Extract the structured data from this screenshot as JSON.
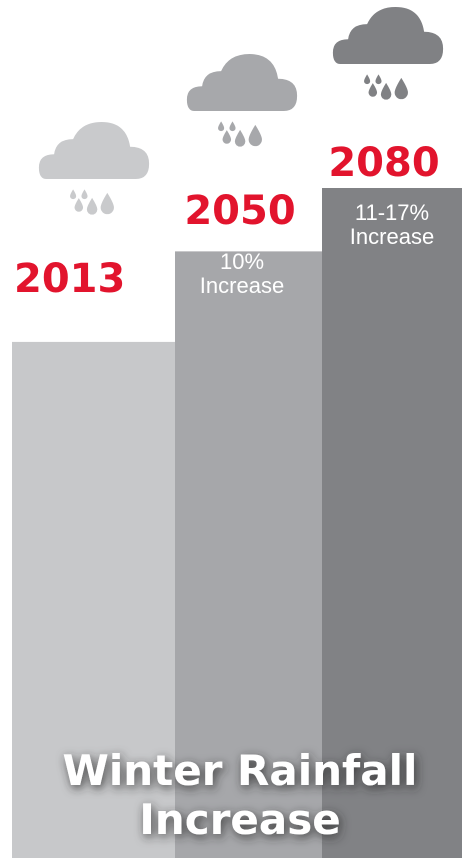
{
  "chart_data": {
    "type": "bar",
    "title_line1": "Winter Rainfall",
    "title_line2": "Increase",
    "categories": [
      "2013",
      "2050",
      "2080"
    ],
    "increase_labels": [
      [],
      [
        "10%",
        "Increase"
      ],
      [
        "11-17%",
        "Increase"
      ]
    ],
    "series": [
      {
        "values": [
          0,
          10,
          17
        ]
      }
    ],
    "ylim": [
      -57,
      17
    ],
    "grid": false,
    "legend": "none"
  },
  "colors": {
    "year_text": "#e2142d",
    "bar_fills": [
      "#c7c8ca",
      "#a6a7aa",
      "#818285"
    ],
    "cloud_fills": [
      "#c9cacc",
      "#a7a8ab",
      "#808184"
    ],
    "increase_text": "#ffffff",
    "title_text": "#ffffff",
    "title_shadow": "#3a3a3a"
  },
  "icons": [
    "rain-cloud-icon",
    "rain-cloud-icon",
    "rain-cloud-icon"
  ]
}
